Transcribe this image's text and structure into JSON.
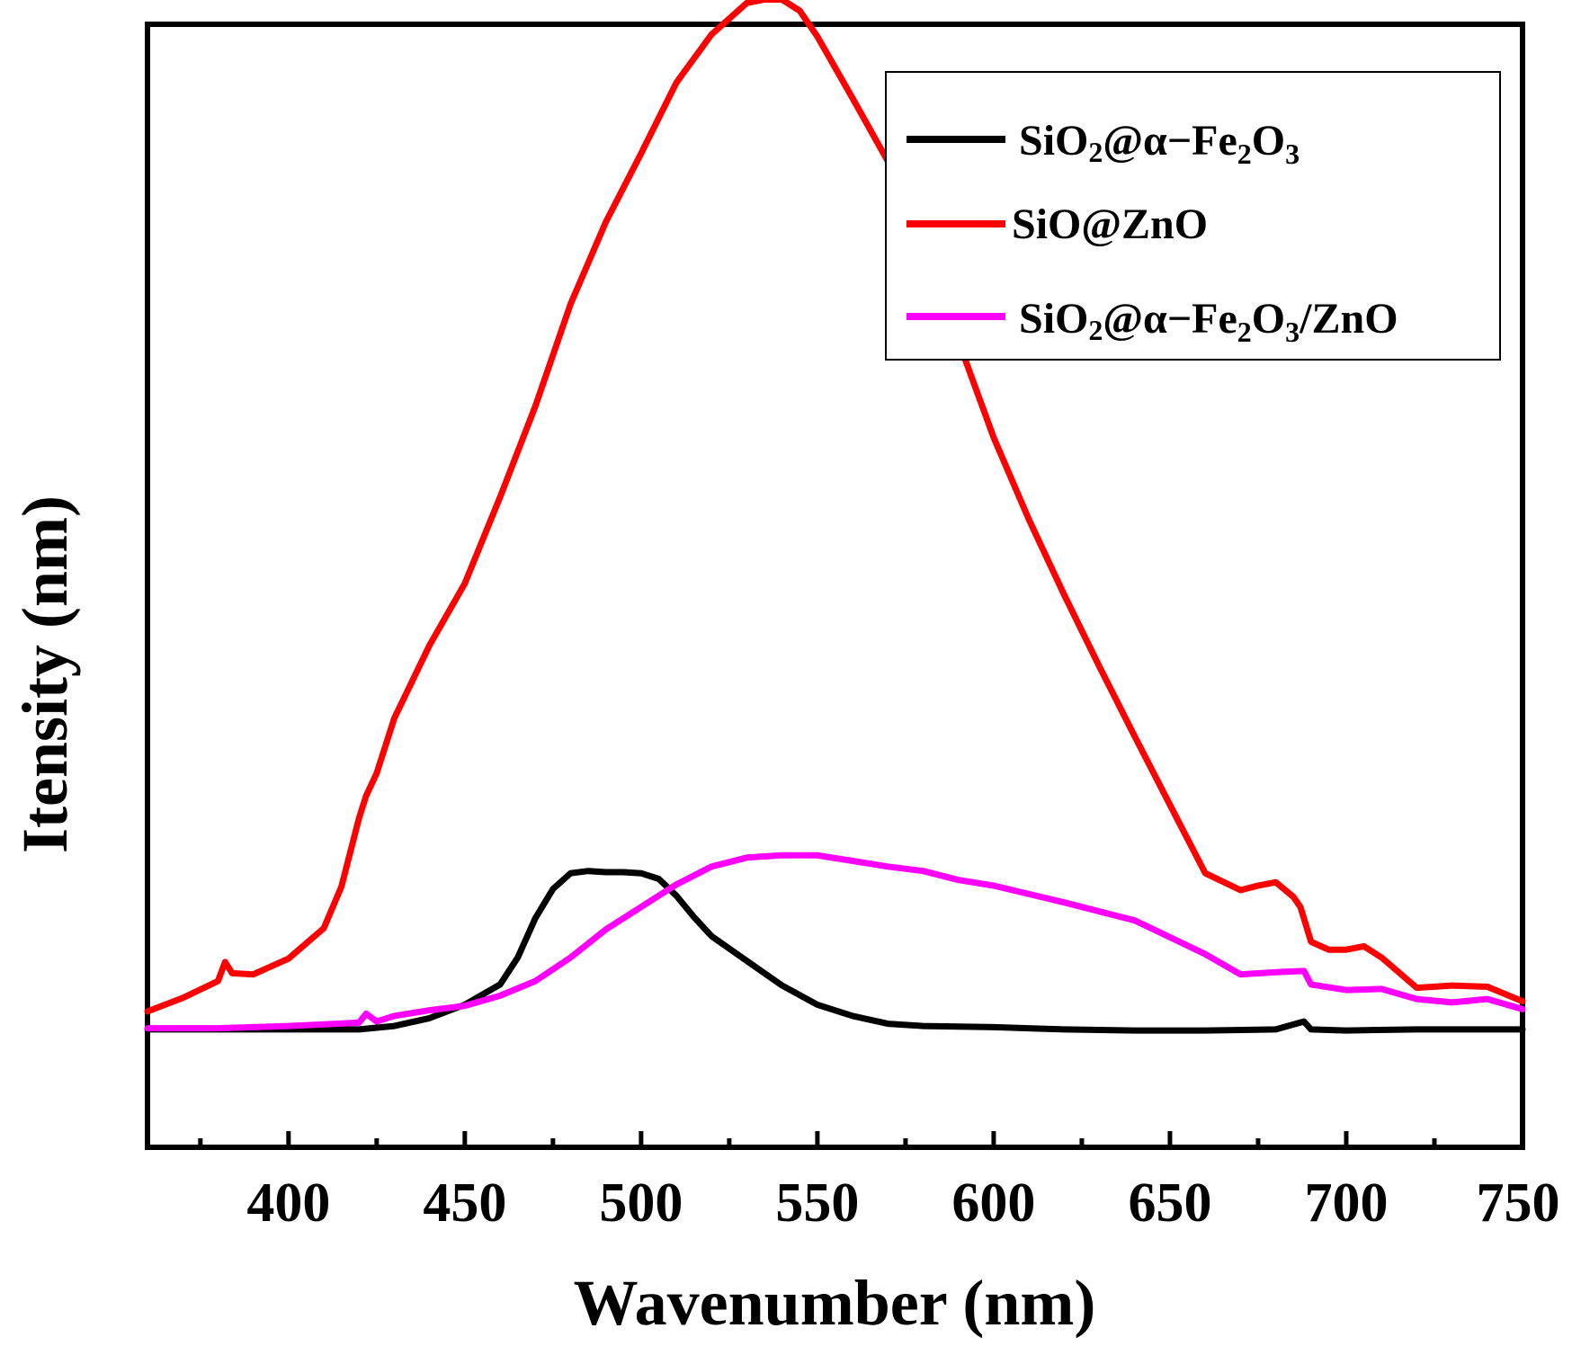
{
  "chart_data": {
    "type": "line",
    "title": "",
    "xlabel": "Wavenumber (nm)",
    "ylabel": "Itensity (nm)",
    "xlim": [
      360,
      750
    ],
    "ylim": [
      0,
      100
    ],
    "xticks": [
      400,
      450,
      500,
      550,
      600,
      650,
      700,
      750
    ],
    "xtick_labels": [
      "400",
      "450",
      "500",
      "550",
      "600",
      "650",
      "700",
      "750"
    ],
    "minor_xticks": [
      375,
      425,
      475,
      525,
      575,
      625,
      675,
      725
    ],
    "grid": false,
    "legend_position": "top-right",
    "series": [
      {
        "name": "SiO2@α−Fe2O3",
        "legend": {
          "p1": "SiO",
          "s1": "2",
          "p2": "@α−Fe",
          "s2": "2",
          "p3": "O",
          "s3": "3",
          "p4": ""
        },
        "color": "#000000",
        "x": [
          360,
          380,
          400,
          420,
          430,
          440,
          450,
          460,
          465,
          470,
          475,
          480,
          485,
          490,
          495,
          500,
          505,
          510,
          515,
          520,
          530,
          540,
          550,
          560,
          570,
          580,
          600,
          620,
          640,
          660,
          680,
          688,
          690,
          700,
          720,
          750
        ],
        "y": [
          10.5,
          10.5,
          10.5,
          10.5,
          10.8,
          11.5,
          12.7,
          14.5,
          16.9,
          20.4,
          23.0,
          24.4,
          24.6,
          24.5,
          24.5,
          24.4,
          23.9,
          22.4,
          20.5,
          18.8,
          16.6,
          14.4,
          12.7,
          11.7,
          11.0,
          10.8,
          10.7,
          10.5,
          10.4,
          10.4,
          10.5,
          11.2,
          10.5,
          10.4,
          10.5,
          10.5
        ]
      },
      {
        "name": "SiO@ZnO",
        "legend": {
          "p1": "SiO@ZnO",
          "s1": "",
          "p2": "",
          "s2": "",
          "p3": "",
          "s3": "",
          "p4": ""
        },
        "color": "#ff0000",
        "x": [
          360,
          370,
          380,
          382,
          384,
          390,
          400,
          410,
          415,
          420,
          422,
          425,
          430,
          440,
          450,
          460,
          470,
          480,
          490,
          500,
          510,
          520,
          530,
          535,
          540,
          545,
          550,
          560,
          570,
          580,
          590,
          600,
          610,
          620,
          630,
          640,
          650,
          660,
          670,
          675,
          680,
          685,
          687,
          690,
          695,
          700,
          705,
          710,
          720,
          730,
          740,
          750
        ],
        "y": [
          12.1,
          13.3,
          14.8,
          16.5,
          15.5,
          15.4,
          16.8,
          19.5,
          23.2,
          29.3,
          31.3,
          33.3,
          38.2,
          44.7,
          50.2,
          57.9,
          66.0,
          75.1,
          82.4,
          88.5,
          94.8,
          99.1,
          101.9,
          102.2,
          102.2,
          101.2,
          98.9,
          93.4,
          87.8,
          80.2,
          71.8,
          63.2,
          55.9,
          49.2,
          42.8,
          36.6,
          30.5,
          24.4,
          22.9,
          23.3,
          23.6,
          22.3,
          21.4,
          18.3,
          17.6,
          17.6,
          17.9,
          16.9,
          14.2,
          14.4,
          14.3,
          13.0
        ]
      },
      {
        "name": "SiO2@α−Fe2O3/ZnO",
        "legend": {
          "p1": "SiO",
          "s1": "2",
          "p2": "@α−Fe",
          "s2": "2",
          "p3": "O",
          "s3": "3",
          "p4": "/ZnO"
        },
        "color": "#ff00ff",
        "x": [
          360,
          380,
          400,
          420,
          422,
          425,
          430,
          440,
          450,
          460,
          470,
          480,
          490,
          500,
          510,
          520,
          530,
          540,
          550,
          560,
          570,
          580,
          590,
          600,
          620,
          640,
          650,
          660,
          670,
          680,
          688,
          690,
          700,
          710,
          720,
          730,
          740,
          750
        ],
        "y": [
          10.6,
          10.6,
          10.8,
          11.1,
          11.9,
          11.2,
          11.7,
          12.2,
          12.6,
          13.5,
          14.8,
          16.9,
          19.4,
          21.4,
          23.4,
          25.0,
          25.8,
          26.0,
          26.0,
          25.5,
          25.0,
          24.6,
          23.8,
          23.3,
          21.8,
          20.2,
          18.7,
          17.2,
          15.4,
          15.6,
          15.7,
          14.5,
          14.0,
          14.1,
          13.2,
          12.9,
          13.2,
          12.3
        ]
      }
    ]
  }
}
